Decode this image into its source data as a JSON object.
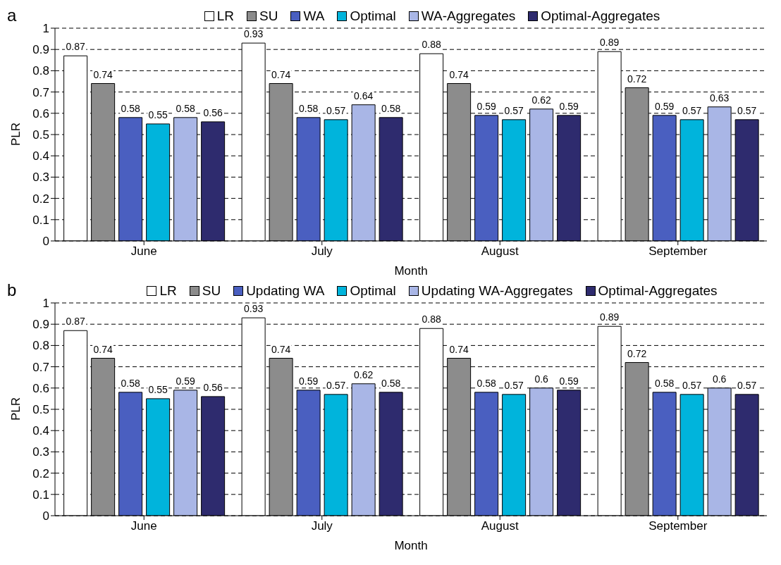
{
  "chart_data": [
    {
      "type": "bar",
      "title": "a",
      "xlabel": "Month",
      "ylabel": "PLR",
      "categories": [
        "June",
        "July",
        "August",
        "September"
      ],
      "series": [
        {
          "name": "LR",
          "color": "#ffffff",
          "values": [
            0.87,
            0.93,
            0.88,
            0.89
          ]
        },
        {
          "name": "SU",
          "color": "#8c8c8c",
          "values": [
            0.74,
            0.74,
            0.74,
            0.72
          ]
        },
        {
          "name": "WA",
          "color": "#4a5fc0",
          "values": [
            0.58,
            0.58,
            0.59,
            0.59
          ]
        },
        {
          "name": "Optimal",
          "color": "#00b4dc",
          "values": [
            0.55,
            0.57,
            0.57,
            0.57
          ]
        },
        {
          "name": "WA-Aggregates",
          "color": "#a9b6e6",
          "values": [
            0.58,
            0.64,
            0.62,
            0.63
          ]
        },
        {
          "name": "Optimal-Aggregates",
          "color": "#2e2b6e",
          "values": [
            0.56,
            0.58,
            0.59,
            0.57
          ]
        }
      ],
      "ylim": [
        0,
        1
      ],
      "yticks": [
        0,
        0.1,
        0.2,
        0.3,
        0.4,
        0.5,
        0.6,
        0.7,
        0.8,
        0.9,
        1
      ],
      "grid": "y",
      "legend": "top",
      "data_labels": true
    },
    {
      "type": "bar",
      "title": "b",
      "xlabel": "Month",
      "ylabel": "PLR",
      "categories": [
        "June",
        "July",
        "August",
        "September"
      ],
      "series": [
        {
          "name": "LR",
          "color": "#ffffff",
          "values": [
            0.87,
            0.93,
            0.88,
            0.89
          ]
        },
        {
          "name": "SU",
          "color": "#8c8c8c",
          "values": [
            0.74,
            0.74,
            0.74,
            0.72
          ]
        },
        {
          "name": "Updating WA",
          "color": "#4a5fc0",
          "values": [
            0.58,
            0.59,
            0.58,
            0.58
          ]
        },
        {
          "name": "Optimal",
          "color": "#00b4dc",
          "values": [
            0.55,
            0.57,
            0.57,
            0.57
          ]
        },
        {
          "name": "Updating WA-Aggregates",
          "color": "#a9b6e6",
          "values": [
            0.59,
            0.62,
            0.6,
            0.6
          ]
        },
        {
          "name": "Optimal-Aggregates",
          "color": "#2e2b6e",
          "values": [
            0.56,
            0.58,
            0.59,
            0.57
          ]
        }
      ],
      "ylim": [
        0,
        1
      ],
      "yticks": [
        0,
        0.1,
        0.2,
        0.3,
        0.4,
        0.5,
        0.6,
        0.7,
        0.8,
        0.9,
        1
      ],
      "grid": "y",
      "legend": "top",
      "data_labels": true
    }
  ]
}
